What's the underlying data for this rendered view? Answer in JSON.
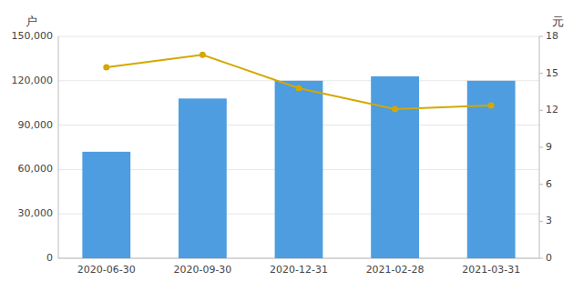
{
  "chart_data": {
    "type": "bar",
    "categories": [
      "2020-06-30",
      "2020-09-30",
      "2020-12-31",
      "2021-02-28",
      "2021-03-31"
    ],
    "ylabel": "户",
    "y2label": "元",
    "series": [
      {
        "type": "bar",
        "color": "#4d9de0",
        "values": [
          72000,
          108000,
          120000,
          123000,
          120000
        ]
      },
      {
        "type": "line",
        "axis": "y2",
        "color": "#d4a800",
        "marker": "circle",
        "values": [
          15.5,
          16.5,
          13.8,
          12.1,
          12.4
        ]
      }
    ],
    "ylim": [
      0,
      150000
    ],
    "yticks": [
      0,
      {
        "value": 30000,
        "label": "30,000"
      },
      {
        "value": 60000,
        "label": "60,000"
      },
      {
        "value": 90000,
        "label": "90,000"
      },
      {
        "value": 120000,
        "label": "120,000"
      },
      {
        "value": 150000,
        "label": "150,000"
      }
    ],
    "y2lim": [
      0,
      18
    ],
    "y2ticks": [
      0,
      3,
      6,
      9,
      12,
      15,
      18
    ],
    "grid": true
  }
}
